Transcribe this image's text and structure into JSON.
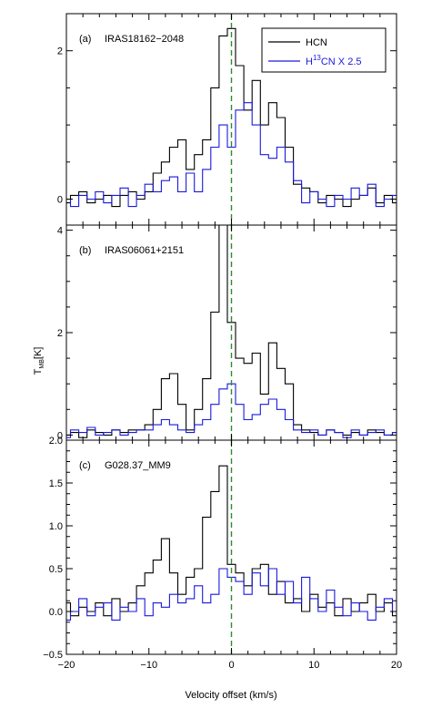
{
  "colors": {
    "hcn": "#000000",
    "h13cn": "#1a1adb",
    "marker": "#2e8b2e"
  },
  "legend": {
    "hcn_label": "HCN",
    "h13cn_prefix": "H",
    "h13cn_sup": "13",
    "h13cn_suffix": "CN X 2.5"
  },
  "xaxis": {
    "label": "Velocity offset (km/s)",
    "ticks": [
      "−20",
      "−10",
      "0",
      "10",
      "20"
    ]
  },
  "yaxis": {
    "label_main": "T",
    "label_sub": "MB",
    "label_unit": "[K]"
  },
  "chart_data": [
    {
      "type": "line",
      "panel": "(a)",
      "source": "IRAS18162−2048",
      "xlim": [
        -20,
        20
      ],
      "ylim": [
        -0.35,
        2.5
      ],
      "yticks": [
        "0",
        "2"
      ],
      "x": [
        -20,
        -19,
        -18,
        -17,
        -16,
        -15,
        -14,
        -13,
        -12,
        -11,
        -10,
        -9,
        -8,
        -7,
        -6,
        -5,
        -4,
        -3,
        -2,
        -1,
        0,
        1,
        2,
        3,
        4,
        5,
        6,
        7,
        8,
        9,
        10,
        11,
        12,
        13,
        14,
        15,
        16,
        17,
        18,
        19,
        20
      ],
      "series": [
        {
          "name": "HCN",
          "values": [
            -0.05,
            0.05,
            0.1,
            -0.05,
            0.0,
            0.05,
            -0.1,
            0.05,
            0.1,
            0.0,
            0.1,
            0.35,
            0.5,
            0.7,
            0.8,
            0.4,
            0.6,
            0.8,
            1.5,
            2.2,
            2.3,
            1.8,
            1.2,
            1.6,
            1.0,
            1.3,
            1.1,
            0.7,
            0.2,
            0.15,
            0.1,
            -0.05,
            0.05,
            0.0,
            -0.1,
            0.0,
            0.05,
            0.15,
            -0.05,
            0.05,
            -0.05
          ]
        },
        {
          "name": "H¹³CN X 2.5",
          "values": [
            0.0,
            -0.1,
            0.05,
            0.0,
            0.1,
            -0.05,
            0.05,
            0.15,
            -0.1,
            0.05,
            0.2,
            0.1,
            0.25,
            0.3,
            0.1,
            0.35,
            0.1,
            0.4,
            0.7,
            1.0,
            0.7,
            1.2,
            1.3,
            1.0,
            0.6,
            0.55,
            0.7,
            0.5,
            0.25,
            -0.05,
            0.1,
            0.0,
            -0.1,
            0.05,
            0.0,
            0.15,
            0.05,
            0.2,
            -0.1,
            0.0,
            0.05
          ]
        }
      ]
    },
    {
      "type": "line",
      "panel": "(b)",
      "source": "IRAS06061+2151",
      "xlim": [
        -20,
        20
      ],
      "ylim": [
        -0.1,
        4.1
      ],
      "yticks": [
        "0",
        "2",
        "4"
      ],
      "x": [
        -20,
        -19,
        -18,
        -17,
        -16,
        -15,
        -14,
        -13,
        -12,
        -11,
        -10,
        -9,
        -8,
        -7,
        -6,
        -5,
        -4,
        -3,
        -2,
        -1,
        0,
        1,
        2,
        3,
        4,
        5,
        6,
        7,
        8,
        9,
        10,
        11,
        12,
        13,
        14,
        15,
        16,
        17,
        18,
        19,
        20
      ],
      "series": [
        {
          "name": "HCN",
          "values": [
            0.0,
            0.05,
            -0.05,
            0.1,
            0.05,
            0.0,
            0.1,
            0.05,
            0.1,
            0.1,
            0.2,
            0.5,
            1.1,
            1.2,
            0.6,
            0.1,
            0.5,
            1.1,
            2.4,
            4.2,
            2.2,
            1.5,
            1.4,
            1.6,
            0.8,
            1.8,
            1.3,
            1.0,
            0.2,
            0.1,
            0.05,
            0.0,
            0.1,
            0.05,
            0.0,
            0.05,
            0.0,
            0.1,
            0.05,
            0.0,
            0.05
          ]
        },
        {
          "name": "H¹³CN X 2.5",
          "values": [
            -0.05,
            0.1,
            0.05,
            0.15,
            0.0,
            0.05,
            0.1,
            0.0,
            0.05,
            0.1,
            0.1,
            0.2,
            0.3,
            0.2,
            0.1,
            0.05,
            0.2,
            0.3,
            0.6,
            0.9,
            1.0,
            0.6,
            0.3,
            0.4,
            0.6,
            0.7,
            0.5,
            0.3,
            0.1,
            0.05,
            0.1,
            0.0,
            0.1,
            0.05,
            -0.05,
            0.1,
            0.0,
            0.05,
            0.1,
            0.0,
            0.05
          ]
        }
      ]
    },
    {
      "type": "line",
      "panel": "(c)",
      "source": "G028.37_MM9",
      "xlim": [
        -20,
        20
      ],
      "ylim": [
        -0.5,
        2.0
      ],
      "yticks": [
        "−0.5",
        "0.0",
        "0.5",
        "1.0",
        "1.5",
        "2.0"
      ],
      "x": [
        -20,
        -19,
        -18,
        -17,
        -16,
        -15,
        -14,
        -13,
        -12,
        -11,
        -10,
        -9,
        -8,
        -7,
        -6,
        -5,
        -4,
        -3,
        -2,
        -1,
        0,
        1,
        2,
        3,
        4,
        5,
        6,
        7,
        8,
        9,
        10,
        11,
        12,
        13,
        14,
        15,
        16,
        17,
        18,
        19,
        20
      ],
      "series": [
        {
          "name": "HCN",
          "values": [
            0.1,
            -0.05,
            0.05,
            0.0,
            0.1,
            -0.05,
            0.15,
            0.0,
            0.1,
            0.3,
            0.45,
            0.6,
            0.85,
            0.45,
            0.2,
            0.4,
            0.5,
            1.1,
            1.4,
            1.7,
            0.55,
            0.45,
            0.3,
            0.5,
            0.55,
            0.2,
            0.35,
            0.1,
            0.15,
            0.0,
            0.2,
            0.05,
            0.1,
            -0.05,
            0.15,
            0.0,
            0.1,
            0.2,
            0.0,
            0.1,
            -0.05
          ]
        },
        {
          "name": "H¹³CN X 2.5",
          "values": [
            -0.1,
            0.0,
            0.15,
            -0.05,
            0.05,
            0.1,
            -0.1,
            0.05,
            0.0,
            0.15,
            -0.05,
            0.1,
            0.05,
            0.2,
            0.1,
            0.15,
            0.3,
            0.1,
            0.2,
            0.5,
            0.4,
            0.35,
            0.2,
            0.45,
            0.3,
            0.5,
            0.2,
            0.35,
            0.1,
            0.4,
            0.15,
            0.0,
            0.25,
            0.05,
            -0.05,
            0.1,
            0.0,
            -0.1,
            0.05,
            0.15,
            0.0
          ]
        }
      ]
    }
  ]
}
